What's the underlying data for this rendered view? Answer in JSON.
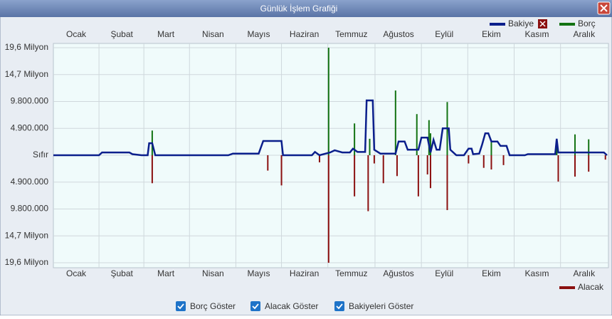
{
  "chart_data": {
    "type": "bar-line",
    "title": "Günlük İşlem Grafiği",
    "xlim": [
      0,
      365
    ],
    "xticks": [
      {
        "value": 15,
        "label": "Ocak"
      },
      {
        "value": 45,
        "label": "Şubat"
      },
      {
        "value": 74,
        "label": "Mart"
      },
      {
        "value": 105,
        "label": "Nisan"
      },
      {
        "value": 135,
        "label": "Mayıs"
      },
      {
        "value": 165,
        "label": "Haziran"
      },
      {
        "value": 196,
        "label": "Temmuz"
      },
      {
        "value": 227,
        "label": "Ağustos"
      },
      {
        "value": 257,
        "label": "Eylül"
      },
      {
        "value": 288,
        "label": "Ekim"
      },
      {
        "value": 318,
        "label": "Kasım"
      },
      {
        "value": 349,
        "label": "Aralık"
      }
    ],
    "ylim": [
      -19600000,
      19600000
    ],
    "yticks": [
      {
        "value": 19600000,
        "label": "19,6 Milyon"
      },
      {
        "value": 14700000,
        "label": "14,7 Milyon"
      },
      {
        "value": 9800000,
        "label": "9.800.000"
      },
      {
        "value": 4900000,
        "label": "4.900.000"
      },
      {
        "value": 0,
        "label": "Sıfır"
      },
      {
        "value": -4900000,
        "label": "4.900.000"
      },
      {
        "value": -9800000,
        "label": "9.800.000"
      },
      {
        "value": -14700000,
        "label": "14,7 Milyon"
      },
      {
        "value": -19600000,
        "label": "19,6 Milyon"
      }
    ],
    "grid": true,
    "series": [
      {
        "name": "Bakiye",
        "color": "#0b1f8c",
        "kind": "line",
        "x": [
          0,
          30,
          32,
          50,
          52,
          58,
          62,
          63,
          65,
          67,
          115,
          118,
          135,
          138,
          150,
          151,
          170,
          172,
          175,
          182,
          185,
          190,
          195,
          197,
          200,
          205,
          206,
          210,
          211,
          215,
          225,
          227,
          231,
          233,
          240,
          242,
          246,
          248,
          250,
          252,
          254,
          256,
          260,
          261,
          265,
          270,
          273,
          275,
          276,
          280,
          282,
          284,
          286,
          288,
          292,
          294,
          298,
          300,
          310,
          312,
          330,
          331,
          332,
          345,
          362,
          364
        ],
        "values": [
          0,
          0,
          500000,
          500000,
          200000,
          0,
          0,
          2200000,
          2200000,
          0,
          0,
          300000,
          300000,
          2600000,
          2600000,
          0,
          0,
          600000,
          0,
          500000,
          900000,
          500000,
          500000,
          1200000,
          600000,
          600000,
          10000000,
          10000000,
          1000000,
          300000,
          300000,
          2500000,
          2500000,
          1000000,
          1000000,
          3200000,
          3200000,
          500000,
          2800000,
          1000000,
          1000000,
          4900000,
          4900000,
          1000000,
          0,
          0,
          1200000,
          1200000,
          200000,
          300000,
          2000000,
          4000000,
          4000000,
          2500000,
          2500000,
          1700000,
          1700000,
          0,
          0,
          200000,
          200000,
          3000000,
          500000,
          500000,
          500000,
          0
        ]
      },
      {
        "name": "Borç",
        "color": "#137313",
        "kind": "bar",
        "x": [
          65,
          181,
          198,
          208,
          225,
          239,
          247,
          248,
          259,
          288,
          331,
          343,
          352
        ],
        "values": [
          4500000,
          19600000,
          5800000,
          3000000,
          11800000,
          7500000,
          6400000,
          4000000,
          9700000,
          2500000,
          1500000,
          3800000,
          2900000
        ]
      },
      {
        "name": "Alacak",
        "color": "#8b1010",
        "kind": "bar",
        "x": [
          65,
          141,
          150,
          175,
          181,
          198,
          207,
          211,
          217,
          226,
          240,
          246,
          248,
          259,
          273,
          283,
          288,
          296,
          332,
          343,
          352,
          363
        ],
        "values": [
          -5100000,
          -2800000,
          -5500000,
          -1300000,
          -19600000,
          -7500000,
          -10200000,
          -1500000,
          -5100000,
          -3800000,
          -7500000,
          -3500000,
          -6000000,
          -10000000,
          -1500000,
          -2300000,
          -2600000,
          -1800000,
          -4800000,
          -3900000,
          -3000000,
          -800000
        ]
      }
    ]
  },
  "controls": [
    "Borç Göster",
    "Alacak Göster",
    "Bakiyeleri Göster"
  ]
}
